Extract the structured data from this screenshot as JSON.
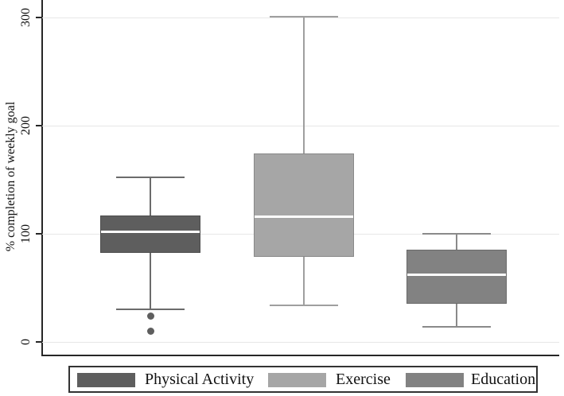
{
  "chart_data": {
    "type": "box",
    "title": "",
    "ylabel": "% completion of weekly goal",
    "xlabel": "",
    "y_ticks": [
      "0",
      "100",
      "200",
      "300"
    ],
    "y_tick_values": [
      0,
      100,
      200,
      300
    ],
    "ylim": [
      0,
      316
    ],
    "grid": true,
    "legend_position": "bottom",
    "background_color": "#ffffff",
    "gridline_color": "#e7e7e7",
    "axis_color": "#262626",
    "median_color": "#ffffff",
    "series": [
      {
        "name": "Physical Activity",
        "fill_color": "#5e5e5e",
        "line_color": "#6b6b6b",
        "whisker_low": 30,
        "q1": 82,
        "median": 102,
        "q3": 117,
        "whisker_high": 152,
        "outliers": [
          24,
          10
        ]
      },
      {
        "name": "Exercise",
        "fill_color": "#a6a6a6",
        "line_color": "#9f9f9f",
        "whisker_low": 34,
        "q1": 79,
        "median": 116,
        "q3": 174,
        "whisker_high": 301,
        "outliers": []
      },
      {
        "name": "Education",
        "fill_color": "#828282",
        "line_color": "#8a8a8a",
        "whisker_low": 14,
        "q1": 35,
        "median": 62,
        "q3": 85,
        "whisker_high": 100,
        "outliers": []
      }
    ]
  }
}
